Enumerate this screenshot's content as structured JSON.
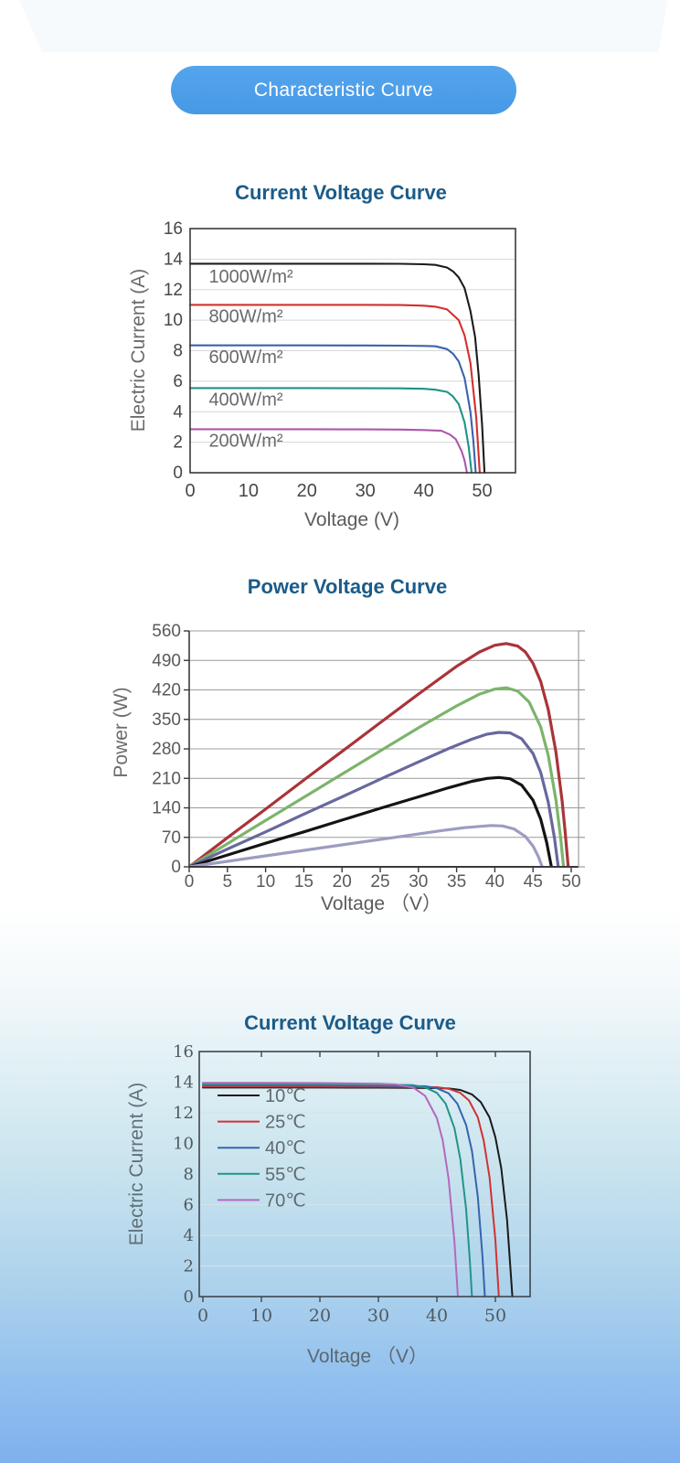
{
  "header": {
    "pill_label": "Characteristic Curve",
    "pill_color": "#4d9ee9"
  },
  "background": {
    "top": "#ffffff",
    "bottom": "#7fb0ed"
  },
  "chart_data": [
    {
      "id": "iv-curve-irradiance",
      "type": "line",
      "title": "Current  Voltage Curve",
      "xlabel": "Voltage (V)",
      "ylabel": "Electric Current (A)",
      "xlim": [
        0,
        55.7
      ],
      "ylim": [
        0,
        16
      ],
      "xticks": [
        0,
        10,
        20,
        30,
        40,
        50
      ],
      "yticks": [
        0,
        2,
        4,
        6,
        8,
        10,
        12,
        14,
        16
      ],
      "grid": "horizontal",
      "legend_position": "inline-labels",
      "series": [
        {
          "name": "1000W/m²",
          "color": "#1c1c1c",
          "label": {
            "x": 3.2,
            "y": 12.45
          },
          "points": [
            [
              0,
              13.7
            ],
            [
              10,
              13.7
            ],
            [
              20,
              13.7
            ],
            [
              30,
              13.7
            ],
            [
              36,
              13.69
            ],
            [
              40,
              13.66
            ],
            [
              42,
              13.62
            ],
            [
              44,
              13.45
            ],
            [
              45,
              13.2
            ],
            [
              46,
              12.8
            ],
            [
              47,
              12.1
            ],
            [
              48,
              10.6
            ],
            [
              48.8,
              8.9
            ],
            [
              49.4,
              6.4
            ],
            [
              50,
              3.1
            ],
            [
              50.4,
              0
            ]
          ]
        },
        {
          "name": "800W/m²",
          "color": "#d2302c",
          "label": {
            "x": 3.2,
            "y": 9.85
          },
          "points": [
            [
              0,
              11
            ],
            [
              10,
              11
            ],
            [
              20,
              11
            ],
            [
              30,
              11
            ],
            [
              36,
              10.99
            ],
            [
              40,
              10.95
            ],
            [
              42,
              10.88
            ],
            [
              44,
              10.7
            ],
            [
              46,
              10.0
            ],
            [
              47,
              9.0
            ],
            [
              48,
              7.2
            ],
            [
              49,
              3.6
            ],
            [
              49.6,
              0
            ]
          ]
        },
        {
          "name": "600W/m²",
          "color": "#3a63ac",
          "label": {
            "x": 3.2,
            "y": 7.2
          },
          "points": [
            [
              0,
              8.35
            ],
            [
              10,
              8.35
            ],
            [
              20,
              8.35
            ],
            [
              30,
              8.34
            ],
            [
              36,
              8.33
            ],
            [
              40,
              8.31
            ],
            [
              42,
              8.29
            ],
            [
              44,
              8.1
            ],
            [
              45,
              7.8
            ],
            [
              46,
              7.3
            ],
            [
              47,
              6.2
            ],
            [
              48,
              4.0
            ],
            [
              48.5,
              2.1
            ],
            [
              48.9,
              0
            ]
          ]
        },
        {
          "name": "400W/m²",
          "color": "#1d9488",
          "label": {
            "x": 3.2,
            "y": 4.4
          },
          "points": [
            [
              0,
              5.55
            ],
            [
              10,
              5.55
            ],
            [
              20,
              5.55
            ],
            [
              30,
              5.54
            ],
            [
              36,
              5.53
            ],
            [
              40,
              5.5
            ],
            [
              42,
              5.44
            ],
            [
              44,
              5.3
            ],
            [
              45,
              5.0
            ],
            [
              46,
              4.5
            ],
            [
              47,
              3.3
            ],
            [
              47.7,
              1.7
            ],
            [
              48.2,
              0
            ]
          ]
        },
        {
          "name": "200W/m²",
          "color": "#ad56ad",
          "label": {
            "x": 3.2,
            "y": 1.7
          },
          "points": [
            [
              0,
              2.85
            ],
            [
              10,
              2.85
            ],
            [
              20,
              2.85
            ],
            [
              30,
              2.84
            ],
            [
              36,
              2.83
            ],
            [
              40,
              2.8
            ],
            [
              43,
              2.75
            ],
            [
              44.5,
              2.5
            ],
            [
              45.5,
              2.2
            ],
            [
              46.5,
              1.4
            ],
            [
              47,
              0.8
            ],
            [
              47.4,
              0
            ]
          ]
        }
      ]
    },
    {
      "id": "pv-curve",
      "type": "line",
      "title": "Power Voltage Curve",
      "xlabel": "Voltage （V）",
      "ylabel": "Power (W)",
      "xlim": [
        0,
        51
      ],
      "ylim": [
        0,
        560
      ],
      "xticks": [
        0,
        5,
        10,
        15,
        20,
        25,
        30,
        35,
        40,
        45,
        50
      ],
      "yticks": [
        0,
        70,
        140,
        210,
        280,
        350,
        420,
        490,
        560
      ],
      "grid": "horizontal",
      "series": [
        {
          "color": "#a93439",
          "points": [
            [
              0,
              0
            ],
            [
              5,
              69
            ],
            [
              10,
              137
            ],
            [
              15,
              206
            ],
            [
              20,
              274
            ],
            [
              25,
              342
            ],
            [
              30,
              410
            ],
            [
              35,
              476
            ],
            [
              38,
              510
            ],
            [
              40,
              526
            ],
            [
              41.5,
              530
            ],
            [
              43,
              524
            ],
            [
              44,
              510
            ],
            [
              45,
              483
            ],
            [
              46,
              440
            ],
            [
              47,
              373
            ],
            [
              48,
              272
            ],
            [
              48.8,
              157
            ],
            [
              49.2,
              84
            ],
            [
              49.6,
              0
            ]
          ]
        },
        {
          "color": "#7cb46b",
          "points": [
            [
              0,
              0
            ],
            [
              5,
              55
            ],
            [
              10,
              110
            ],
            [
              15,
              165
            ],
            [
              20,
              220
            ],
            [
              25,
              275
            ],
            [
              30,
              330
            ],
            [
              35,
              382
            ],
            [
              38,
              410
            ],
            [
              40,
              422
            ],
            [
              41.5,
              425
            ],
            [
              43,
              417
            ],
            [
              44.5,
              391
            ],
            [
              46,
              332
            ],
            [
              47,
              264
            ],
            [
              48,
              158
            ],
            [
              48.6,
              71
            ],
            [
              49,
              0
            ]
          ]
        },
        {
          "color": "#68689e",
          "points": [
            [
              0,
              0
            ],
            [
              5,
              42
            ],
            [
              10,
              83
            ],
            [
              15,
              125
            ],
            [
              20,
              166
            ],
            [
              25,
              208
            ],
            [
              30,
              249
            ],
            [
              34,
              281
            ],
            [
              37,
              303
            ],
            [
              39,
              315
            ],
            [
              40.5,
              319
            ],
            [
              42,
              318
            ],
            [
              43.5,
              304
            ],
            [
              45,
              269
            ],
            [
              46,
              224
            ],
            [
              47,
              153
            ],
            [
              47.8,
              69
            ],
            [
              48.3,
              0
            ]
          ]
        },
        {
          "color": "#141414",
          "points": [
            [
              0,
              0
            ],
            [
              5,
              28
            ],
            [
              10,
              56
            ],
            [
              15,
              83
            ],
            [
              20,
              111
            ],
            [
              25,
              139
            ],
            [
              30,
              166
            ],
            [
              34,
              188
            ],
            [
              37,
              203
            ],
            [
              39,
              210
            ],
            [
              40.5,
              212
            ],
            [
              42,
              209
            ],
            [
              43.5,
              194
            ],
            [
              45,
              158
            ],
            [
              46,
              113
            ],
            [
              46.8,
              57
            ],
            [
              47.4,
              0
            ]
          ]
        },
        {
          "color": "#9c9cc4",
          "points": [
            [
              0,
              0
            ],
            [
              5,
              13
            ],
            [
              10,
              26
            ],
            [
              15,
              39
            ],
            [
              20,
              52
            ],
            [
              25,
              65
            ],
            [
              30,
              78
            ],
            [
              33,
              86
            ],
            [
              36,
              93
            ],
            [
              38,
              96
            ],
            [
              39.5,
              98
            ],
            [
              41,
              97
            ],
            [
              42.5,
              90
            ],
            [
              44,
              72
            ],
            [
              45,
              49
            ],
            [
              45.7,
              24
            ],
            [
              46.2,
              0
            ]
          ]
        }
      ]
    },
    {
      "id": "iv-curve-temperature",
      "type": "line",
      "title": "Current  Voltage Curve",
      "xlabel": "Voltage （V）",
      "ylabel": "Electric Current (A)",
      "xlim": [
        0,
        56.5
      ],
      "ylim": [
        0,
        16
      ],
      "xticks": [
        0,
        10,
        20,
        30,
        40,
        50
      ],
      "yticks": [
        0,
        2,
        4,
        6,
        8,
        10,
        12,
        14,
        16
      ],
      "grid": "horizontal",
      "legend_position": "upper-left-inside",
      "series": [
        {
          "name": "10℃",
          "color": "#1a1a1a",
          "points": [
            [
              0,
              13.65
            ],
            [
              10,
              13.65
            ],
            [
              20,
              13.65
            ],
            [
              30,
              13.64
            ],
            [
              36,
              13.63
            ],
            [
              40,
              13.61
            ],
            [
              42,
              13.59
            ],
            [
              44,
              13.49
            ],
            [
              46,
              13.2
            ],
            [
              47.5,
              12.7
            ],
            [
              49,
              11.7
            ],
            [
              50,
              10.4
            ],
            [
              51,
              8.4
            ],
            [
              52,
              5.0
            ],
            [
              52.9,
              0
            ]
          ]
        },
        {
          "name": "25℃",
          "color": "#cf3333",
          "points": [
            [
              0,
              13.72
            ],
            [
              10,
              13.72
            ],
            [
              20,
              13.71
            ],
            [
              30,
              13.7
            ],
            [
              36,
              13.69
            ],
            [
              40,
              13.67
            ],
            [
              42,
              13.57
            ],
            [
              44,
              13.3
            ],
            [
              45.5,
              12.8
            ],
            [
              47,
              11.7
            ],
            [
              48,
              10.2
            ],
            [
              49,
              7.8
            ],
            [
              50,
              3.7
            ],
            [
              50.6,
              0
            ]
          ]
        },
        {
          "name": "40℃",
          "color": "#3565ae",
          "points": [
            [
              0,
              13.8
            ],
            [
              10,
              13.8
            ],
            [
              20,
              13.79
            ],
            [
              30,
              13.77
            ],
            [
              34,
              13.75
            ],
            [
              38,
              13.74
            ],
            [
              40,
              13.6
            ],
            [
              42,
              13.27
            ],
            [
              43.5,
              12.6
            ],
            [
              45,
              11.2
            ],
            [
              46,
              9.5
            ],
            [
              47,
              6.5
            ],
            [
              47.8,
              2.6
            ],
            [
              48.2,
              0
            ]
          ]
        },
        {
          "name": "55℃",
          "color": "#22948a",
          "points": [
            [
              0,
              13.87
            ],
            [
              10,
              13.87
            ],
            [
              20,
              13.86
            ],
            [
              30,
              13.84
            ],
            [
              34,
              13.82
            ],
            [
              36,
              13.8
            ],
            [
              38,
              13.66
            ],
            [
              40,
              13.3
            ],
            [
              41.5,
              12.6
            ],
            [
              43,
              11.0
            ],
            [
              44,
              9.0
            ],
            [
              45,
              5.7
            ],
            [
              45.6,
              2.6
            ],
            [
              46,
              0
            ]
          ]
        },
        {
          "name": "70℃",
          "color": "#b369bd",
          "points": [
            [
              0,
              13.95
            ],
            [
              10,
              13.95
            ],
            [
              20,
              13.94
            ],
            [
              30,
              13.9
            ],
            [
              33,
              13.85
            ],
            [
              36,
              13.64
            ],
            [
              38,
              13.1
            ],
            [
              40,
              11.65
            ],
            [
              41,
              10.2
            ],
            [
              42,
              7.7
            ],
            [
              43,
              3.6
            ],
            [
              43.6,
              0
            ]
          ]
        }
      ]
    }
  ]
}
